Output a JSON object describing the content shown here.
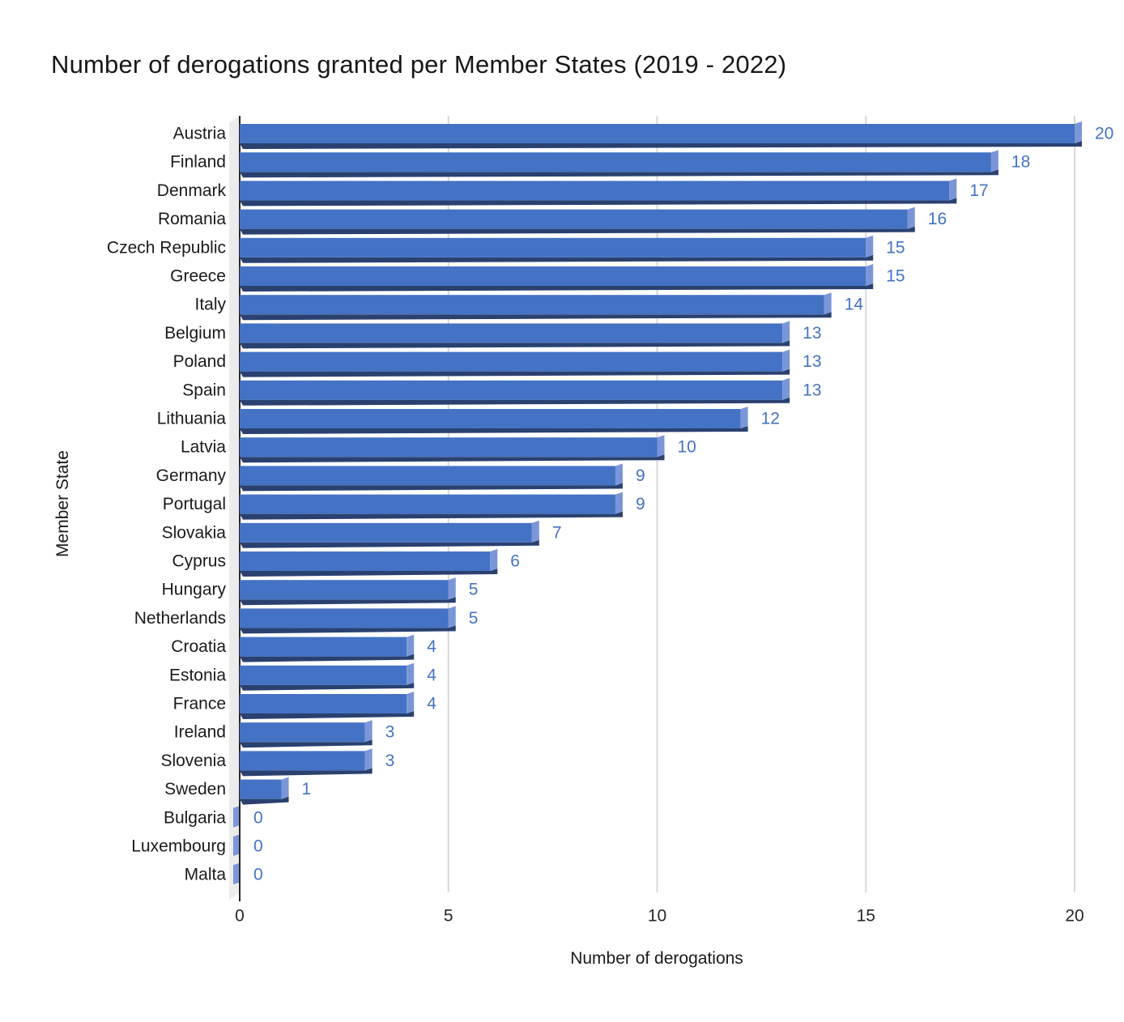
{
  "page": {
    "background": "#FFFFFF"
  },
  "chart_data": {
    "type": "bar",
    "orientation": "horizontal",
    "effect": "3d",
    "title": "Number of derogations granted per Member States (2019 - 2022)",
    "xlabel": "Number of derogations",
    "ylabel": "Member State",
    "categories": [
      "Austria",
      "Finland",
      "Denmark",
      "Romania",
      "Czech Republic",
      "Greece",
      "Italy",
      "Belgium",
      "Poland",
      "Spain",
      "Lithuania",
      "Latvia",
      "Germany",
      "Portugal",
      "Slovakia",
      "Cyprus",
      "Hungary",
      "Netherlands",
      "Croatia",
      "Estonia",
      "France",
      "Ireland",
      "Slovenia",
      "Sweden",
      "Bulgaria",
      "Luxembourg",
      "Malta"
    ],
    "values": [
      20,
      18,
      17,
      16,
      15,
      15,
      14,
      13,
      13,
      13,
      12,
      10,
      9,
      9,
      7,
      6,
      5,
      5,
      4,
      4,
      4,
      3,
      3,
      1,
      0,
      0,
      0
    ],
    "data_labels": true,
    "xlim": [
      0,
      20
    ],
    "xticks": [
      0,
      5,
      10,
      15,
      20
    ],
    "gridlines": "vertical",
    "legend": "none",
    "colors": {
      "bar_face": "#4472C4",
      "bar_end_cap": "#7B96D8",
      "bar_bottom_shadow": "#2A4170",
      "value_label": "#4472C4",
      "gridline": "#D8D8D8",
      "axis_line": "#262626",
      "wall": "#ECECEC",
      "text": "#1A1A1A"
    }
  }
}
